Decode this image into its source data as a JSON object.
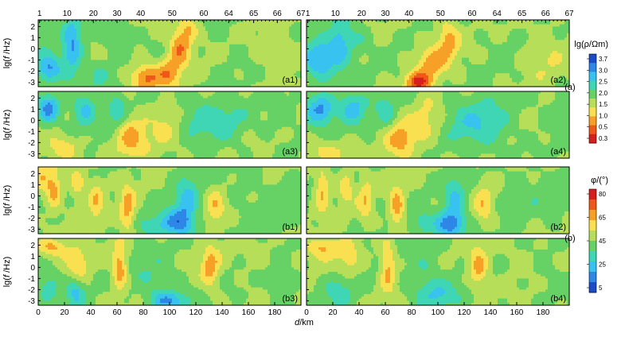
{
  "chart_data": {
    "type": "heatmap",
    "figure_part_labels": [
      "(a)",
      "(b)"
    ],
    "top_axis_ticks": [
      "1",
      "10",
      "20",
      "30",
      "40",
      "50",
      "60",
      "64",
      "65",
      "66",
      "67"
    ],
    "x_axis": {
      "label_italic": "d",
      "label_unit": "/km",
      "range": [
        0,
        200
      ],
      "ticks": [
        "0",
        "20",
        "40",
        "60",
        "80",
        "100",
        "120",
        "140",
        "160",
        "180"
      ]
    },
    "y_axis": {
      "label_prefix": "lg(",
      "label_var": "f",
      "label_suffix": " /Hz)",
      "range": [
        -3.4,
        2.6
      ],
      "ticks": [
        "2",
        "1",
        "0",
        "-1",
        "-2",
        "-3"
      ]
    },
    "colorbars": [
      {
        "id": "resistivity",
        "title": "lg(ρ/Ωm)",
        "tick_labels": [
          "3.7",
          "3.0",
          "2.5",
          "2.0",
          "1.5",
          "1.0",
          "0.5",
          "0.3"
        ],
        "scale": "resistivity",
        "range": [
          0.3,
          3.7
        ]
      },
      {
        "id": "phase",
        "title": "φ/(°)",
        "tick_labels": [
          "80",
          "65",
          "45",
          "25",
          "5"
        ],
        "scale": "phase",
        "range": [
          5,
          85
        ]
      }
    ],
    "palette": [
      "#d62020",
      "#ee5818",
      "#f6a028",
      "#f8e050",
      "#b6de58",
      "#66d266",
      "#3ed6b4",
      "#38c2f0",
      "#2e86e6",
      "#1a4cc8"
    ],
    "panels": [
      {
        "label": "(a1)",
        "quantity": "apparent resistivity",
        "seed": 1,
        "features": [
          {
            "x": 8,
            "y": -1.8,
            "sx": 7,
            "sy": 0.9,
            "a": 1.3
          },
          {
            "x": 26,
            "y": 0.2,
            "sx": 5,
            "sy": 2.0,
            "a": 1.2
          },
          {
            "x": 2,
            "y": 1.5,
            "sx": 6,
            "sy": 0.8,
            "a": 0.5
          },
          {
            "x": 45,
            "y": -2.5,
            "sx": 8,
            "sy": 1.0,
            "a": 0.4
          },
          {
            "x": 82,
            "y": -2.6,
            "sx": 8,
            "sy": 0.9,
            "a": -1.3
          },
          {
            "x": 100,
            "y": -2.2,
            "sx": 6,
            "sy": 0.9,
            "a": -1.0
          },
          {
            "x": 108,
            "y": 0.2,
            "sx": 6,
            "sy": 1.2,
            "a": -1.2
          },
          {
            "x": 115,
            "y": 1.8,
            "sx": 5,
            "sy": 0.7,
            "a": -0.7
          },
          {
            "x": 60,
            "y": 1.0,
            "sx": 8,
            "sy": 1.0,
            "a": 0.4
          },
          {
            "x": 150,
            "y": 0.5,
            "sx": 12,
            "sy": 1.6,
            "a": 0.1
          },
          {
            "x": 180,
            "y": 0.0,
            "sx": 12,
            "sy": 1.6,
            "a": -0.3
          }
        ]
      },
      {
        "label": "(a2)",
        "quantity": "apparent resistivity",
        "seed": 2,
        "features": [
          {
            "x": 10,
            "y": -1.0,
            "sx": 9,
            "sy": 1.2,
            "a": 1.3
          },
          {
            "x": 26,
            "y": 0.5,
            "sx": 6,
            "sy": 1.5,
            "a": 1.0
          },
          {
            "x": 40,
            "y": 0.8,
            "sx": 6,
            "sy": 1.0,
            "a": 0.4
          },
          {
            "x": 85,
            "y": -3.0,
            "sx": 7,
            "sy": 0.6,
            "a": -1.6
          },
          {
            "x": 95,
            "y": -1.2,
            "sx": 8,
            "sy": 1.0,
            "a": -1.0
          },
          {
            "x": 108,
            "y": 0.8,
            "sx": 6,
            "sy": 1.2,
            "a": -1.0
          },
          {
            "x": 150,
            "y": 0.5,
            "sx": 12,
            "sy": 1.6,
            "a": 0.1
          },
          {
            "x": 180,
            "y": -0.5,
            "sx": 12,
            "sy": 1.6,
            "a": -0.4
          }
        ]
      },
      {
        "label": "(a3)",
        "quantity": "apparent resistivity",
        "seed": 3,
        "features": [
          {
            "x": 8,
            "y": 1.0,
            "sx": 6,
            "sy": 0.9,
            "a": 1.4
          },
          {
            "x": 35,
            "y": 1.0,
            "sx": 7,
            "sy": 1.1,
            "a": 0.9
          },
          {
            "x": 60,
            "y": 0.8,
            "sx": 5,
            "sy": 1.0,
            "a": 0.8
          },
          {
            "x": 18,
            "y": -2.5,
            "sx": 10,
            "sy": 0.8,
            "a": -0.7
          },
          {
            "x": 70,
            "y": -1.5,
            "sx": 8,
            "sy": 1.4,
            "a": -0.9
          },
          {
            "x": 95,
            "y": -1.0,
            "sx": 10,
            "sy": 1.6,
            "a": -0.4
          },
          {
            "x": 120,
            "y": 0.2,
            "sx": 10,
            "sy": 1.3,
            "a": 0.5
          },
          {
            "x": 142,
            "y": 0.0,
            "sx": 12,
            "sy": 1.5,
            "a": 0.5
          },
          {
            "x": 185,
            "y": 0.5,
            "sx": 8,
            "sy": 1.2,
            "a": 0.3
          }
        ]
      },
      {
        "label": "(a4)",
        "quantity": "apparent resistivity",
        "seed": 4,
        "features": [
          {
            "x": 10,
            "y": 1.0,
            "sx": 8,
            "sy": 1.0,
            "a": 1.4
          },
          {
            "x": 35,
            "y": 1.2,
            "sx": 7,
            "sy": 1.0,
            "a": 1.0
          },
          {
            "x": 60,
            "y": 0.8,
            "sx": 5,
            "sy": 1.0,
            "a": 0.7
          },
          {
            "x": 15,
            "y": -2.8,
            "sx": 12,
            "sy": 0.7,
            "a": -0.6
          },
          {
            "x": 72,
            "y": -1.8,
            "sx": 8,
            "sy": 1.2,
            "a": -1.0
          },
          {
            "x": 92,
            "y": 0.0,
            "sx": 8,
            "sy": 1.5,
            "a": -0.5
          },
          {
            "x": 120,
            "y": 0.0,
            "sx": 12,
            "sy": 1.5,
            "a": 0.5
          },
          {
            "x": 140,
            "y": -0.5,
            "sx": 12,
            "sy": 1.5,
            "a": 0.6
          },
          {
            "x": 190,
            "y": 0.5,
            "sx": 8,
            "sy": 1.2,
            "a": 0.3
          }
        ]
      },
      {
        "label": "(b1)",
        "quantity": "phase",
        "seed": 5,
        "features": [
          {
            "x": 12,
            "y": 0.5,
            "sx": 4,
            "sy": 1.4,
            "a": -0.9
          },
          {
            "x": 30,
            "y": 1.0,
            "sx": 4,
            "sy": 1.0,
            "a": -0.7
          },
          {
            "x": 44,
            "y": -0.3,
            "sx": 4,
            "sy": 1.5,
            "a": -0.7
          },
          {
            "x": 68,
            "y": -1.2,
            "sx": 4,
            "sy": 1.5,
            "a": -1.0
          },
          {
            "x": 3,
            "y": 1.5,
            "sx": 5,
            "sy": 1.0,
            "a": -0.6
          },
          {
            "x": 105,
            "y": -2.5,
            "sx": 10,
            "sy": 0.9,
            "a": 1.3
          },
          {
            "x": 113,
            "y": -0.5,
            "sx": 6,
            "sy": 1.6,
            "a": 0.9
          },
          {
            "x": 85,
            "y": -2.8,
            "sx": 6,
            "sy": 0.6,
            "a": 0.5
          },
          {
            "x": 135,
            "y": -1.0,
            "sx": 5,
            "sy": 1.2,
            "a": -0.7
          },
          {
            "x": 158,
            "y": 0.5,
            "sx": 10,
            "sy": 1.5,
            "a": 0.2
          },
          {
            "x": 185,
            "y": -0.5,
            "sx": 10,
            "sy": 1.5,
            "a": 0.2
          }
        ]
      },
      {
        "label": "(b2)",
        "quantity": "phase",
        "seed": 6,
        "features": [
          {
            "x": 12,
            "y": 0.5,
            "sx": 4,
            "sy": 1.4,
            "a": -0.9
          },
          {
            "x": 30,
            "y": 0.8,
            "sx": 4,
            "sy": 1.0,
            "a": -0.7
          },
          {
            "x": 45,
            "y": -0.5,
            "sx": 4,
            "sy": 1.4,
            "a": -0.7
          },
          {
            "x": 69,
            "y": -1.0,
            "sx": 4,
            "sy": 1.5,
            "a": -1.0
          },
          {
            "x": 108,
            "y": -2.6,
            "sx": 8,
            "sy": 0.8,
            "a": 1.4
          },
          {
            "x": 113,
            "y": -0.5,
            "sx": 6,
            "sy": 1.6,
            "a": 0.9
          },
          {
            "x": 88,
            "y": -2.5,
            "sx": 6,
            "sy": 0.8,
            "a": 0.6
          },
          {
            "x": 135,
            "y": -0.8,
            "sx": 5,
            "sy": 1.2,
            "a": -0.7
          },
          {
            "x": 160,
            "y": 0.5,
            "sx": 10,
            "sy": 1.5,
            "a": 0.2
          },
          {
            "x": 185,
            "y": -0.5,
            "sx": 10,
            "sy": 1.5,
            "a": 0.2
          }
        ]
      },
      {
        "label": "(b3)",
        "quantity": "phase",
        "seed": 7,
        "features": [
          {
            "x": 10,
            "y": 1.8,
            "sx": 8,
            "sy": 0.6,
            "a": -1.0
          },
          {
            "x": 30,
            "y": 0.3,
            "sx": 6,
            "sy": 1.2,
            "a": -0.7
          },
          {
            "x": 62,
            "y": 0.0,
            "sx": 4,
            "sy": 1.5,
            "a": -1.1
          },
          {
            "x": 28,
            "y": -2.2,
            "sx": 5,
            "sy": 1.0,
            "a": 0.9
          },
          {
            "x": 8,
            "y": -1.8,
            "sx": 6,
            "sy": 1.0,
            "a": 0.7
          },
          {
            "x": 100,
            "y": -3.0,
            "sx": 10,
            "sy": 0.6,
            "a": 1.2
          },
          {
            "x": 88,
            "y": -1.0,
            "sx": 10,
            "sy": 1.5,
            "a": 0.4
          },
          {
            "x": 131,
            "y": 0.0,
            "sx": 5,
            "sy": 1.3,
            "a": -1.0
          },
          {
            "x": 165,
            "y": 1.0,
            "sx": 12,
            "sy": 1.2,
            "a": -0.2
          },
          {
            "x": 185,
            "y": -1.5,
            "sx": 8,
            "sy": 1.2,
            "a": 0.3
          }
        ]
      },
      {
        "label": "(b4)",
        "quantity": "phase",
        "seed": 8,
        "features": [
          {
            "x": 12,
            "y": 1.8,
            "sx": 8,
            "sy": 0.7,
            "a": -0.9
          },
          {
            "x": 32,
            "y": 0.8,
            "sx": 6,
            "sy": 1.2,
            "a": -0.6
          },
          {
            "x": 62,
            "y": 0.0,
            "sx": 4,
            "sy": 1.5,
            "a": -1.0
          },
          {
            "x": 25,
            "y": -2.2,
            "sx": 8,
            "sy": 1.0,
            "a": 0.6
          },
          {
            "x": 100,
            "y": -2.5,
            "sx": 12,
            "sy": 0.9,
            "a": 0.7
          },
          {
            "x": 90,
            "y": -0.5,
            "sx": 10,
            "sy": 1.5,
            "a": 0.4
          },
          {
            "x": 131,
            "y": 0.0,
            "sx": 5,
            "sy": 1.3,
            "a": -1.0
          },
          {
            "x": 160,
            "y": 1.0,
            "sx": 10,
            "sy": 1.2,
            "a": -0.2
          },
          {
            "x": 185,
            "y": -0.5,
            "sx": 10,
            "sy": 1.2,
            "a": 0.2
          }
        ]
      }
    ]
  }
}
